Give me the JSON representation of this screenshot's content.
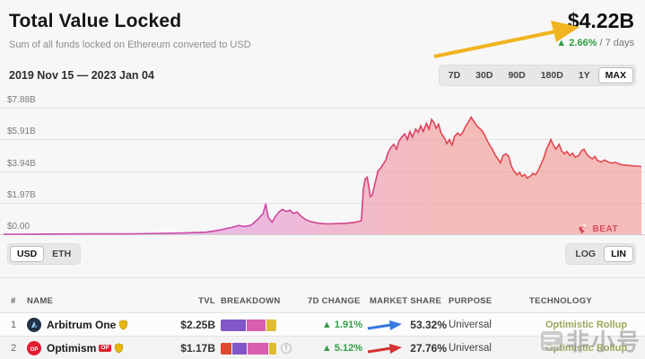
{
  "header": {
    "title": "Total Value Locked",
    "subtitle": "Sum of all funds locked on Ethereum converted to USD",
    "value": "$4.22B",
    "change": "▲ 2.66%",
    "change_suffix": " / 7 days"
  },
  "toolbar": {
    "date_range": "2019 Nov 15 — 2023 Jan 04",
    "ranges": [
      "7D",
      "30D",
      "90D",
      "180D",
      "1Y",
      "MAX"
    ],
    "active_range": "MAX"
  },
  "chart_controls": {
    "currencies": [
      "USD",
      "ETH"
    ],
    "active_currency": "USD",
    "scales": [
      "LOG",
      "LIN"
    ],
    "active_scale": "LIN"
  },
  "chart_watermark": {
    "heart_number": "2",
    "text": "BEAT"
  },
  "chart_data": {
    "type": "area",
    "title": "Total Value Locked",
    "x_range": [
      "2019 Nov 15",
      "2023 Jan 04"
    ],
    "ylim": [
      0,
      7.88
    ],
    "y_ticks": [
      "$7.88B",
      "$5.91B",
      "$3.94B",
      "$1.97B",
      "$0.00"
    ],
    "x_tick_labels_visible": false,
    "grid": true,
    "colors": {
      "line_left": "#c84fb2",
      "line_right": "#e2494e",
      "fill_left": "#dd9ae0",
      "fill_right": "#f29590"
    },
    "series": [
      {
        "name": "TVL (USD, $B)",
        "points": [
          [
            0,
            0
          ],
          [
            0.07,
            0.01
          ],
          [
            0.135,
            0.02
          ],
          [
            0.205,
            0.03
          ],
          [
            0.276,
            0.07
          ],
          [
            0.318,
            0.13
          ],
          [
            0.339,
            0.26
          ],
          [
            0.357,
            0.42
          ],
          [
            0.369,
            0.55
          ],
          [
            0.377,
            0.48
          ],
          [
            0.388,
            0.56
          ],
          [
            0.399,
            0.95
          ],
          [
            0.407,
            1.3
          ],
          [
            0.411,
            1.9
          ],
          [
            0.415,
            1.05
          ],
          [
            0.421,
            0.75
          ],
          [
            0.426,
            1.1
          ],
          [
            0.432,
            1.4
          ],
          [
            0.437,
            1.55
          ],
          [
            0.443,
            1.42
          ],
          [
            0.449,
            1.5
          ],
          [
            0.454,
            1.3
          ],
          [
            0.46,
            1.38
          ],
          [
            0.467,
            1.1
          ],
          [
            0.474,
            0.9
          ],
          [
            0.482,
            0.78
          ],
          [
            0.494,
            0.68
          ],
          [
            0.508,
            0.64
          ],
          [
            0.522,
            0.66
          ],
          [
            0.536,
            0.68
          ],
          [
            0.547,
            0.72
          ],
          [
            0.556,
            0.78
          ],
          [
            0.561,
            0.85
          ],
          [
            0.564,
            2.8
          ],
          [
            0.567,
            3.45
          ],
          [
            0.57,
            3.55
          ],
          [
            0.572,
            3.1
          ],
          [
            0.575,
            2.35
          ],
          [
            0.578,
            2.45
          ],
          [
            0.582,
            3.1
          ],
          [
            0.587,
            3.95
          ],
          [
            0.591,
            4.1
          ],
          [
            0.595,
            4.35
          ],
          [
            0.599,
            4.6
          ],
          [
            0.603,
            5.1
          ],
          [
            0.608,
            5.45
          ],
          [
            0.612,
            5.6
          ],
          [
            0.616,
            5.3
          ],
          [
            0.62,
            5.8
          ],
          [
            0.625,
            6.1
          ],
          [
            0.629,
            6.25
          ],
          [
            0.633,
            5.9
          ],
          [
            0.637,
            6.4
          ],
          [
            0.641,
            6.05
          ],
          [
            0.646,
            6.55
          ],
          [
            0.65,
            6.35
          ],
          [
            0.654,
            6.75
          ],
          [
            0.658,
            6.4
          ],
          [
            0.663,
            6.9
          ],
          [
            0.667,
            6.55
          ],
          [
            0.671,
            7.15
          ],
          [
            0.675,
            6.95
          ],
          [
            0.678,
            6.6
          ],
          [
            0.682,
            6.85
          ],
          [
            0.686,
            6.3
          ],
          [
            0.691,
            6.0
          ],
          [
            0.695,
            5.65
          ],
          [
            0.699,
            5.9
          ],
          [
            0.703,
            5.55
          ],
          [
            0.707,
            6.1
          ],
          [
            0.712,
            6.3
          ],
          [
            0.716,
            6.15
          ],
          [
            0.72,
            6.35
          ],
          [
            0.724,
            6.7
          ],
          [
            0.729,
            7.0
          ],
          [
            0.733,
            7.3
          ],
          [
            0.737,
            7.05
          ],
          [
            0.741,
            6.8
          ],
          [
            0.746,
            6.6
          ],
          [
            0.75,
            6.45
          ],
          [
            0.754,
            6.2
          ],
          [
            0.758,
            5.85
          ],
          [
            0.762,
            5.55
          ],
          [
            0.767,
            5.25
          ],
          [
            0.771,
            4.9
          ],
          [
            0.775,
            4.7
          ],
          [
            0.779,
            4.45
          ],
          [
            0.783,
            4.9
          ],
          [
            0.788,
            5.0
          ],
          [
            0.792,
            4.85
          ],
          [
            0.796,
            4.25
          ],
          [
            0.8,
            3.95
          ],
          [
            0.805,
            3.7
          ],
          [
            0.809,
            3.85
          ],
          [
            0.813,
            3.6
          ],
          [
            0.817,
            3.72
          ],
          [
            0.821,
            3.5
          ],
          [
            0.826,
            3.62
          ],
          [
            0.83,
            3.8
          ],
          [
            0.834,
            3.7
          ],
          [
            0.838,
            3.95
          ],
          [
            0.843,
            4.4
          ],
          [
            0.847,
            4.75
          ],
          [
            0.851,
            5.3
          ],
          [
            0.855,
            5.6
          ],
          [
            0.858,
            5.9
          ],
          [
            0.862,
            5.55
          ],
          [
            0.866,
            5.3
          ],
          [
            0.871,
            5.6
          ],
          [
            0.875,
            5.2
          ],
          [
            0.879,
            5.0
          ],
          [
            0.883,
            5.15
          ],
          [
            0.888,
            4.9
          ],
          [
            0.892,
            5.05
          ],
          [
            0.896,
            4.8
          ],
          [
            0.902,
            4.9
          ],
          [
            0.906,
            5.2
          ],
          [
            0.91,
            5.3
          ],
          [
            0.914,
            5.0
          ],
          [
            0.919,
            4.8
          ],
          [
            0.923,
            4.7
          ],
          [
            0.927,
            4.85
          ],
          [
            0.931,
            4.6
          ],
          [
            0.937,
            4.5
          ],
          [
            0.942,
            4.62
          ],
          [
            0.948,
            4.5
          ],
          [
            0.954,
            4.42
          ],
          [
            0.959,
            4.48
          ],
          [
            0.965,
            4.38
          ],
          [
            0.97,
            4.32
          ],
          [
            0.976,
            4.3
          ],
          [
            0.982,
            4.28
          ],
          [
            0.987,
            4.26
          ],
          [
            0.993,
            4.24
          ],
          [
            1,
            4.22
          ]
        ]
      }
    ]
  },
  "table": {
    "columns": [
      "#",
      "NAME",
      "TVL",
      "BREAKDOWN",
      "7D CHANGE",
      "MARKET SHARE",
      "PURPOSE",
      "TECHNOLOGY"
    ],
    "rows": [
      {
        "rank": "1",
        "name": "Arbitrum One",
        "tvl": "$2.25B",
        "breakdown": [
          {
            "color": "#8157c8",
            "pct": 46
          },
          {
            "color": "#d75fae",
            "pct": 36
          },
          {
            "color": "#e0bc33",
            "pct": 18
          }
        ],
        "change": "▲ 1.91%",
        "share": "53.32%",
        "purpose": "Universal",
        "technology": "Optimistic Rollup"
      },
      {
        "rank": "2",
        "name": "Optimism",
        "badge": "OP",
        "tvl": "$1.17B",
        "breakdown": [
          {
            "color": "#dd4b2e",
            "pct": 20
          },
          {
            "color": "#8157c8",
            "pct": 28
          },
          {
            "color": "#d75fae",
            "pct": 38
          },
          {
            "color": "#e0bc33",
            "pct": 14
          }
        ],
        "change": "▲ 5.12%",
        "share": "27.76%",
        "purpose": "Universal",
        "technology": "Optimistic Rollup",
        "info_glyph": "!"
      }
    ]
  },
  "annotations": {
    "arrow_colors": {
      "header": "#f0b41f",
      "row1": "#3779e0",
      "row2": "#d63031"
    }
  },
  "site_watermark": {
    "text": "非小号"
  }
}
